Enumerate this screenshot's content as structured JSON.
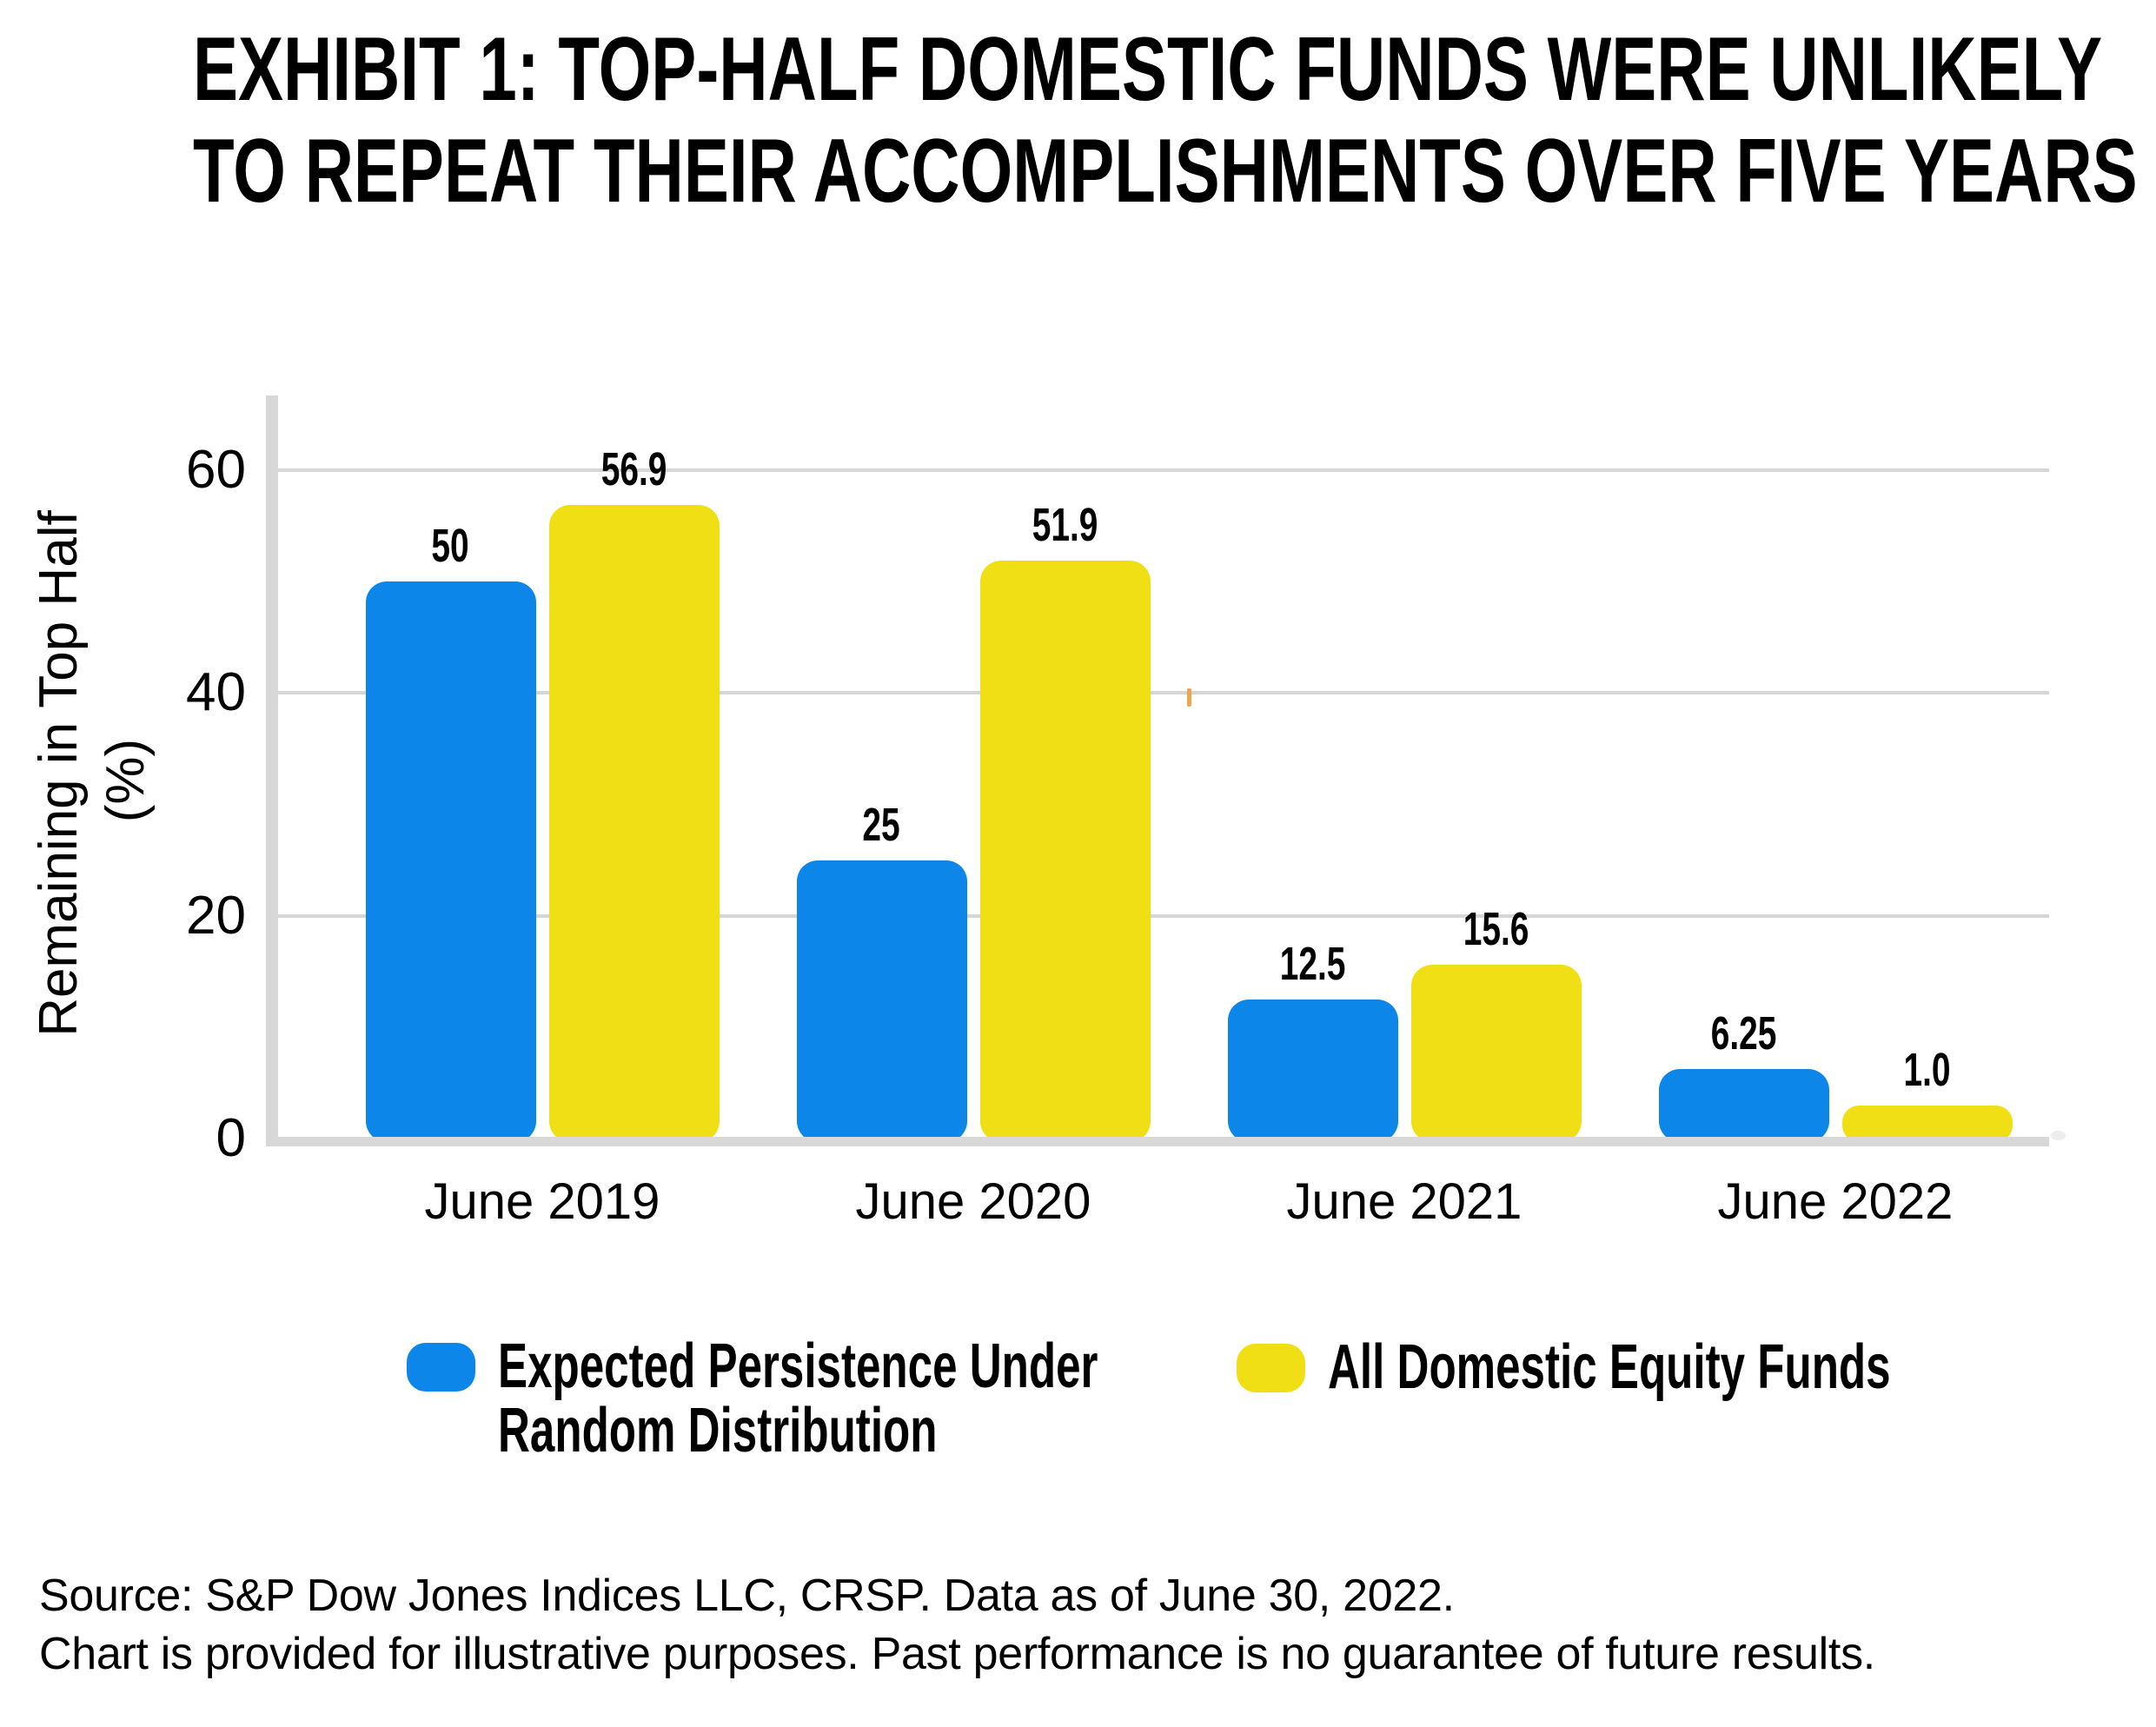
{
  "title": {
    "line1": "EXHIBIT 1: TOP-HALF DOMESTIC FUNDS WERE UNLIKELY",
    "line2": "TO REPEAT THEIR ACCOMPLISHMENTS OVER FIVE YEARS"
  },
  "chart_data": {
    "type": "bar",
    "title": "EXHIBIT 1: TOP-HALF DOMESTIC FUNDS WERE UNLIKELY TO REPEAT THEIR ACCOMPLISHMENTS OVER FIVE YEARS",
    "categories": [
      "June 2019",
      "June 2020",
      "June 2021",
      "June 2022"
    ],
    "series": [
      {
        "name": "Expected Persistence Under Random Distribution",
        "color": "#0d86e9",
        "values": [
          50,
          25,
          12.5,
          6.25
        ],
        "value_labels": [
          "50",
          "25",
          "12.5",
          "6.25"
        ]
      },
      {
        "name": "All Domestic Equity Funds",
        "color": "#f1df15",
        "values": [
          56.9,
          51.9,
          15.6,
          1.0
        ],
        "value_labels": [
          "56.9",
          "51.9",
          "15.6",
          "1.0"
        ]
      }
    ],
    "xlabel": "",
    "ylabel": "Remaining in Top Half (%)",
    "ylabel_lines": [
      "Remaining in Top Half",
      "(%)"
    ],
    "yticks": [
      0,
      20,
      40,
      60
    ],
    "ylim": [
      0,
      67
    ],
    "grid": true,
    "legend_position": "bottom"
  },
  "legend": {
    "items": [
      {
        "line1": "Expected Persistence Under",
        "line2": "Random Distribution",
        "color": "#0d86e9"
      },
      {
        "line1": "All Domestic Equity Funds",
        "line2": "",
        "color": "#f1df15"
      }
    ]
  },
  "footer": {
    "line1": "Source: S&P Dow Jones Indices LLC, CRSP. Data as of June 30, 2022.",
    "line2": "Chart is provided for illustrative purposes. Past performance is no guarantee of future results."
  },
  "colors": {
    "bar_blue": "#0d86e9",
    "bar_yellow": "#f1df15",
    "grid": "#d6d6d6",
    "axis": "#d8d8d8",
    "text": "#000000"
  }
}
